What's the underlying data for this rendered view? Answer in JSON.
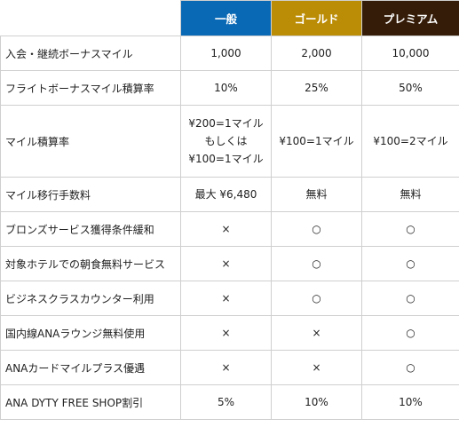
{
  "colors": {
    "ippan_header": "#0a69b5",
    "gold_header": "#bb8c05",
    "premium_header": "#351c08",
    "grid_line": "#cfcfcf"
  },
  "columns": {
    "ippan": "一般",
    "gold": "ゴールド",
    "premium": "プレミアム"
  },
  "rows": [
    {
      "label": "入会・継続ボーナスマイル",
      "ippan": "1,000",
      "gold": "2,000",
      "premium": "10,000"
    },
    {
      "label": "フライトボーナスマイル積算率",
      "ippan": "10%",
      "gold": "25%",
      "premium": "50%"
    },
    {
      "label": "マイル積算率",
      "ippan": [
        "¥200=1マイル",
        "もしくは",
        "¥100=1マイル"
      ],
      "gold": "¥100=1マイル",
      "premium": "¥100=2マイル"
    },
    {
      "label": "マイル移行手数料",
      "ippan": "最大 ¥6,480",
      "gold": "無料",
      "premium": "無料"
    },
    {
      "label": "ブロンズサービス獲得条件緩和",
      "ippan": "×",
      "gold": "○",
      "premium": "○"
    },
    {
      "label": "対象ホテルでの朝食無料サービス",
      "ippan": "×",
      "gold": "○",
      "premium": "○"
    },
    {
      "label": "ビジネスクラスカウンター利用",
      "ippan": "×",
      "gold": "○",
      "premium": "○"
    },
    {
      "label": "国内線ANAラウンジ無料使用",
      "ippan": "×",
      "gold": "×",
      "premium": "○"
    },
    {
      "label": "ANAカードマイルプラス優遇",
      "ippan": "×",
      "gold": "×",
      "premium": "○"
    },
    {
      "label": "ANA DYTY FREE SHOP割引",
      "ippan": "5%",
      "gold": "10%",
      "premium": "10%"
    }
  ]
}
